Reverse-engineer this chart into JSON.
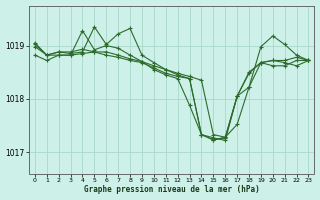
{
  "title": "Graphe pression niveau de la mer (hPa)",
  "background_color": "#cdf0e8",
  "grid_color": "#a8d8c8",
  "line_color": "#2d6b2d",
  "xlim": [
    -0.5,
    23.5
  ],
  "ylim": [
    1016.6,
    1019.75
  ],
  "yticks": [
    1017,
    1018,
    1019
  ],
  "xticks": [
    0,
    1,
    2,
    3,
    4,
    5,
    6,
    7,
    8,
    9,
    10,
    11,
    12,
    13,
    14,
    15,
    16,
    17,
    18,
    19,
    20,
    21,
    22,
    23
  ],
  "series": [
    {
      "x": [
        0,
        1,
        2,
        3,
        4,
        5,
        6,
        7,
        8,
        9,
        10,
        11,
        12,
        13,
        14,
        15,
        16,
        17,
        18,
        19,
        20,
        21,
        22,
        23
      ],
      "y": [
        1019.05,
        1018.82,
        1018.88,
        1018.88,
        1018.93,
        1018.88,
        1018.88,
        1018.82,
        1018.75,
        1018.7,
        1018.62,
        1018.55,
        1018.48,
        1018.42,
        1018.35,
        1017.33,
        1017.28,
        1018.05,
        1018.5,
        1018.68,
        1018.72,
        1018.72,
        1018.78,
        1018.72
      ]
    },
    {
      "x": [
        0,
        1,
        2,
        3,
        4,
        5,
        6,
        7,
        8,
        9,
        10,
        11,
        12,
        13,
        14,
        15,
        16,
        17,
        18,
        19,
        20,
        21,
        22,
        23
      ],
      "y": [
        1018.82,
        1018.72,
        1018.82,
        1018.82,
        1019.28,
        1018.92,
        1019.0,
        1018.95,
        1018.82,
        1018.7,
        1018.55,
        1018.45,
        1018.38,
        1017.88,
        1017.33,
        1017.23,
        1017.28,
        1017.52,
        1018.22,
        1018.98,
        1019.18,
        1019.02,
        1018.82,
        1018.72
      ]
    },
    {
      "x": [
        0,
        1,
        2,
        3,
        4,
        5,
        6,
        7,
        8,
        9,
        10,
        11,
        12,
        13,
        14,
        15,
        16,
        17,
        18,
        19,
        20,
        21,
        22,
        23
      ],
      "y": [
        1019.02,
        1018.82,
        1018.88,
        1018.85,
        1018.88,
        1019.35,
        1019.02,
        1019.22,
        1019.32,
        1018.82,
        1018.68,
        1018.55,
        1018.45,
        1018.38,
        1017.33,
        1017.27,
        1017.22,
        1018.05,
        1018.22,
        1018.68,
        1018.72,
        1018.68,
        1018.62,
        1018.72
      ]
    },
    {
      "x": [
        0,
        1,
        2,
        3,
        4,
        5,
        6,
        7,
        8,
        9,
        10,
        11,
        12,
        13,
        14,
        15,
        16,
        17,
        18,
        19,
        20,
        21,
        22,
        23
      ],
      "y": [
        1018.98,
        1018.82,
        1018.82,
        1018.82,
        1018.85,
        1018.88,
        1018.82,
        1018.78,
        1018.72,
        1018.68,
        1018.58,
        1018.48,
        1018.42,
        1018.38,
        1017.33,
        1017.23,
        1017.27,
        1018.05,
        1018.48,
        1018.68,
        1018.62,
        1018.62,
        1018.72,
        1018.72
      ]
    }
  ]
}
